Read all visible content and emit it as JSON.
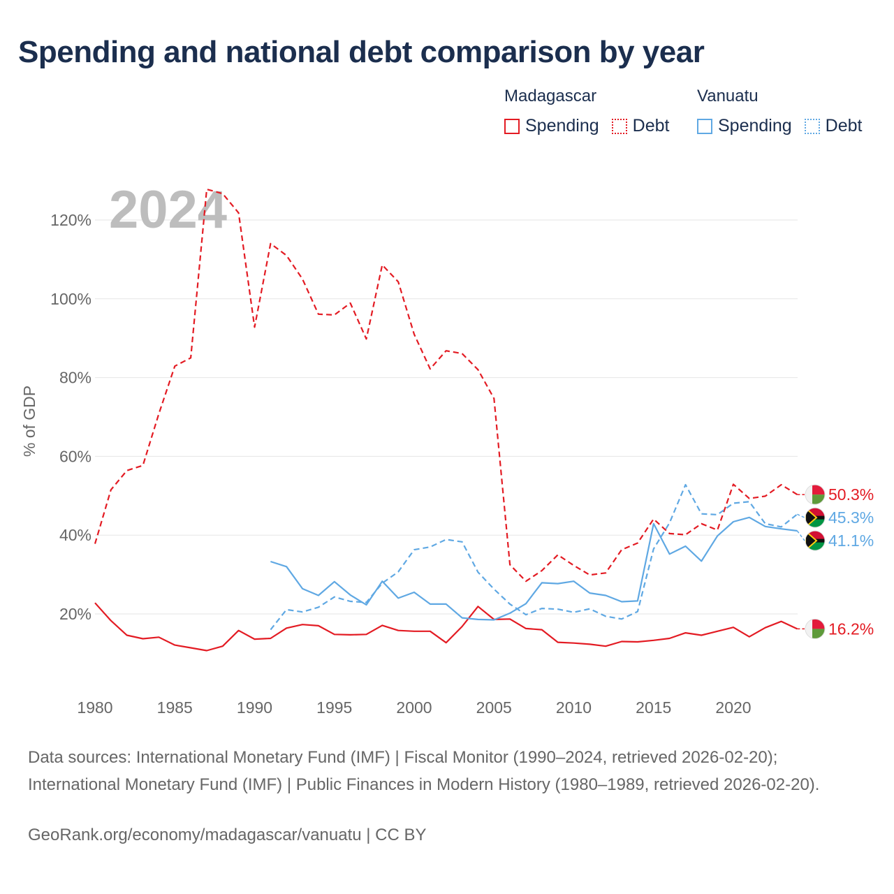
{
  "title": "Spending and national debt comparison by year",
  "legend": {
    "groups": [
      {
        "name": "Madagascar",
        "items": [
          {
            "label": "Spending",
            "style": "solid",
            "color": "#e31b23"
          },
          {
            "label": "Debt",
            "style": "dotted",
            "color": "#e31b23"
          }
        ]
      },
      {
        "name": "Vanuatu",
        "items": [
          {
            "label": "Spending",
            "style": "solid",
            "color": "#5fa8e3"
          },
          {
            "label": "Debt",
            "style": "dotted",
            "color": "#5fa8e3"
          }
        ]
      }
    ]
  },
  "year_watermark": "2024",
  "source_text": "Data sources: International Monetary Fund (IMF) | Fiscal Monitor (1990–2024, retrieved 2026-02-20); International Monetary Fund (IMF) | Public Finances in Modern History (1980–1989, retrieved 2026-02-20).",
  "credit_text": "GeoRank.org/economy/madagascar/vanuatu | CC BY",
  "chart_data": {
    "type": "line",
    "title": "Spending and national debt comparison by year",
    "xlabel": "",
    "ylabel": "% of GDP",
    "xlim": [
      1980,
      2024
    ],
    "ylim": [
      2,
      130
    ],
    "yticks": [
      20,
      40,
      60,
      80,
      100,
      120
    ],
    "ytick_labels": [
      "20%",
      "40%",
      "60%",
      "80%",
      "100%",
      "120%"
    ],
    "xticks": [
      1980,
      1985,
      1990,
      1995,
      2000,
      2005,
      2010,
      2015,
      2020
    ],
    "xtick_labels": [
      "1980",
      "1985",
      "1990",
      "1995",
      "2000",
      "2005",
      "2010",
      "2015",
      "2020"
    ],
    "grid": true,
    "series": [
      {
        "name": "Madagascar Spending",
        "country": "Madagascar",
        "metric": "Spending",
        "color": "#e31b23",
        "dash": "solid",
        "end_label": "16.2%",
        "x": [
          1980,
          1981,
          1982,
          1983,
          1984,
          1985,
          1986,
          1987,
          1988,
          1989,
          1990,
          1991,
          1992,
          1993,
          1994,
          1995,
          1996,
          1997,
          1998,
          1999,
          2000,
          2001,
          2002,
          2003,
          2004,
          2005,
          2006,
          2007,
          2008,
          2009,
          2010,
          2011,
          2012,
          2013,
          2014,
          2015,
          2016,
          2017,
          2018,
          2019,
          2020,
          2021,
          2022,
          2023,
          2024
        ],
        "values": [
          22.8,
          18.3,
          14.6,
          13.7,
          14.1,
          12.1,
          11.4,
          10.7,
          11.8,
          15.8,
          13.6,
          13.8,
          16.4,
          17.3,
          17.0,
          14.8,
          14.7,
          14.8,
          17.1,
          15.8,
          15.6,
          15.6,
          12.7,
          16.8,
          21.9,
          18.6,
          18.7,
          16.3,
          16.0,
          12.8,
          12.6,
          12.3,
          11.8,
          13.0,
          12.9,
          13.3,
          13.8,
          15.2,
          14.6,
          15.6,
          16.6,
          14.2,
          16.5,
          18.1,
          16.2
        ]
      },
      {
        "name": "Madagascar Debt",
        "country": "Madagascar",
        "metric": "Debt",
        "color": "#e31b23",
        "dash": "dashed",
        "end_label": "50.3%",
        "x": [
          1980,
          1981,
          1982,
          1983,
          1984,
          1985,
          1986,
          1987,
          1988,
          1989,
          1990,
          1991,
          1992,
          1993,
          1994,
          1995,
          1996,
          1997,
          1998,
          1999,
          2000,
          2001,
          2002,
          2003,
          2004,
          2005,
          2006,
          2007,
          2008,
          2009,
          2010,
          2011,
          2012,
          2013,
          2014,
          2015,
          2016,
          2017,
          2018,
          2019,
          2020,
          2021,
          2022,
          2023,
          2024
        ],
        "values": [
          37.8,
          51.5,
          56.4,
          57.7,
          70.8,
          82.9,
          85.0,
          127.8,
          126.7,
          121.8,
          92.8,
          114.0,
          111.0,
          105.0,
          96.1,
          95.9,
          98.9,
          89.8,
          108.6,
          104.3,
          91.0,
          82.2,
          86.8,
          86.1,
          82.0,
          74.7,
          32.5,
          28.3,
          31.0,
          35.0,
          32.3,
          29.9,
          30.4,
          36.3,
          38.0,
          44.1,
          40.4,
          40.1,
          42.9,
          41.3,
          52.9,
          49.3,
          49.9,
          52.8,
          50.3
        ]
      },
      {
        "name": "Vanuatu Spending",
        "country": "Vanuatu",
        "metric": "Spending",
        "color": "#5fa8e3",
        "dash": "solid",
        "end_label": "41.1%",
        "x": [
          1991,
          1992,
          1993,
          1994,
          1995,
          1996,
          1997,
          1998,
          1999,
          2000,
          2001,
          2002,
          2003,
          2004,
          2005,
          2006,
          2007,
          2008,
          2009,
          2010,
          2011,
          2012,
          2013,
          2014,
          2015,
          2016,
          2017,
          2018,
          2019,
          2020,
          2021,
          2022,
          2023,
          2024
        ],
        "values": [
          33.3,
          32.0,
          26.4,
          24.7,
          28.2,
          24.8,
          22.3,
          28.3,
          24.0,
          25.5,
          22.5,
          22.5,
          19.0,
          18.6,
          18.5,
          20.2,
          22.6,
          27.9,
          27.7,
          28.3,
          25.3,
          24.7,
          23.1,
          23.3,
          42.9,
          35.2,
          37.2,
          33.4,
          39.8,
          43.4,
          44.5,
          42.2,
          41.6,
          41.1
        ]
      },
      {
        "name": "Vanuatu Debt",
        "country": "Vanuatu",
        "metric": "Debt",
        "color": "#5fa8e3",
        "dash": "dashed",
        "end_label": "45.3%",
        "x": [
          1991,
          1992,
          1993,
          1994,
          1995,
          1996,
          1997,
          1998,
          1999,
          2000,
          2001,
          2002,
          2003,
          2004,
          2005,
          2006,
          2007,
          2008,
          2009,
          2010,
          2011,
          2012,
          2013,
          2014,
          2015,
          2016,
          2017,
          2018,
          2019,
          2020,
          2021,
          2022,
          2023,
          2024
        ],
        "values": [
          16.0,
          21.1,
          20.5,
          21.7,
          24.3,
          23.2,
          22.9,
          27.8,
          30.7,
          36.3,
          37.0,
          38.9,
          38.3,
          30.6,
          26.3,
          22.5,
          19.8,
          21.4,
          21.2,
          20.4,
          21.3,
          19.4,
          18.7,
          20.6,
          36.5,
          43.1,
          52.8,
          45.4,
          45.2,
          48.1,
          48.5,
          42.9,
          42.1,
          45.3
        ]
      }
    ]
  }
}
